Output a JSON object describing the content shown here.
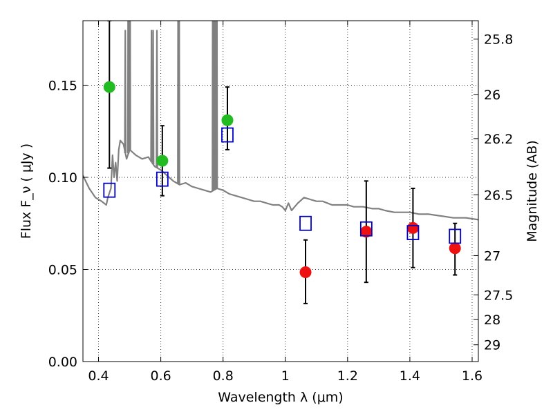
{
  "chart_data": {
    "type": "scatter",
    "xlabel": "Wavelength  λ (μm)",
    "ylabel": "Flux  F_ν  ( μJy )",
    "ylabel_right": "Magnitude (AB)",
    "xlim": [
      0.35,
      1.62
    ],
    "ylim": [
      0.0,
      0.185
    ],
    "grid": true,
    "x_ticks": [
      0.4,
      0.6,
      0.8,
      1.0,
      1.2,
      1.4,
      1.6
    ],
    "x_tick_labels": [
      "0.4",
      "0.6",
      "0.8",
      "1",
      "1.2",
      "1.4",
      "1.6"
    ],
    "y_ticks": [
      0.0,
      0.05,
      0.1,
      0.15
    ],
    "y_tick_labels": [
      "0.00",
      "0.05",
      "0.10",
      "0.15"
    ],
    "right_ticks": [
      {
        "label": "25.8",
        "flux": 0.175
      },
      {
        "label": "26",
        "flux": 0.145
      },
      {
        "label": "26.2",
        "flux": 0.121
      },
      {
        "label": "26.5",
        "flux": 0.0905
      },
      {
        "label": "27",
        "flux": 0.0575
      },
      {
        "label": "27.5",
        "flux": 0.0362
      },
      {
        "label": "28",
        "flux": 0.0228
      },
      {
        "label": "29",
        "flux": 0.0091
      }
    ],
    "colors": {
      "green": "#22bb22",
      "red": "#ee1111",
      "blue_square": "#0000cc",
      "model_line": "#808080",
      "error_bar": "#000000"
    },
    "series": [
      {
        "marker": "circle",
        "color": "green",
        "points": [
          {
            "x": 0.435,
            "y": 0.149,
            "lo": 0.105,
            "hi": 0.185
          },
          {
            "x": 0.605,
            "y": 0.109,
            "lo": 0.09,
            "hi": 0.128
          },
          {
            "x": 0.814,
            "y": 0.131,
            "lo": 0.115,
            "hi": 0.149
          }
        ]
      },
      {
        "marker": "circle",
        "color": "red",
        "points": [
          {
            "x": 1.065,
            "y": 0.0485,
            "lo": 0.0315,
            "hi": 0.066
          },
          {
            "x": 1.26,
            "y": 0.0705,
            "lo": 0.043,
            "hi": 0.098
          },
          {
            "x": 1.41,
            "y": 0.0725,
            "lo": 0.051,
            "hi": 0.094
          },
          {
            "x": 1.545,
            "y": 0.0615,
            "lo": 0.047,
            "hi": 0.075
          }
        ]
      },
      {
        "marker": "square-open",
        "color": "blue_square",
        "points": [
          {
            "x": 0.435,
            "y": 0.093
          },
          {
            "x": 0.605,
            "y": 0.099
          },
          {
            "x": 0.814,
            "y": 0.123
          },
          {
            "x": 1.065,
            "y": 0.075
          },
          {
            "x": 1.26,
            "y": 0.072
          },
          {
            "x": 1.41,
            "y": 0.07
          },
          {
            "x": 1.545,
            "y": 0.068
          }
        ]
      }
    ],
    "model_spectrum": {
      "color": "model_line",
      "points": [
        [
          0.35,
          0.101
        ],
        [
          0.37,
          0.094
        ],
        [
          0.39,
          0.089
        ],
        [
          0.41,
          0.087
        ],
        [
          0.425,
          0.085
        ],
        [
          0.43,
          0.089
        ],
        [
          0.44,
          0.094
        ],
        [
          0.445,
          0.112
        ],
        [
          0.45,
          0.1
        ],
        [
          0.455,
          0.108
        ],
        [
          0.46,
          0.098
        ],
        [
          0.465,
          0.115
        ],
        [
          0.47,
          0.12
        ],
        [
          0.48,
          0.118
        ],
        [
          0.49,
          0.11
        ],
        [
          0.5,
          0.115
        ],
        [
          0.52,
          0.112
        ],
        [
          0.54,
          0.11
        ],
        [
          0.56,
          0.111
        ],
        [
          0.58,
          0.106
        ],
        [
          0.6,
          0.104
        ],
        [
          0.62,
          0.101
        ],
        [
          0.64,
          0.098
        ],
        [
          0.66,
          0.096
        ],
        [
          0.68,
          0.097
        ],
        [
          0.7,
          0.095
        ],
        [
          0.72,
          0.094
        ],
        [
          0.74,
          0.093
        ],
        [
          0.76,
          0.092
        ],
        [
          0.78,
          0.094
        ],
        [
          0.8,
          0.093
        ],
        [
          0.82,
          0.091
        ],
        [
          0.84,
          0.09
        ],
        [
          0.86,
          0.089
        ],
        [
          0.88,
          0.088
        ],
        [
          0.9,
          0.087
        ],
        [
          0.92,
          0.087
        ],
        [
          0.94,
          0.086
        ],
        [
          0.96,
          0.085
        ],
        [
          0.98,
          0.085
        ],
        [
          0.99,
          0.084
        ],
        [
          1.0,
          0.082
        ],
        [
          1.01,
          0.086
        ],
        [
          1.02,
          0.082
        ],
        [
          1.03,
          0.084
        ],
        [
          1.04,
          0.086
        ],
        [
          1.06,
          0.089
        ],
        [
          1.08,
          0.088
        ],
        [
          1.1,
          0.087
        ],
        [
          1.12,
          0.087
        ],
        [
          1.15,
          0.085
        ],
        [
          1.18,
          0.085
        ],
        [
          1.2,
          0.085
        ],
        [
          1.22,
          0.084
        ],
        [
          1.25,
          0.084
        ],
        [
          1.28,
          0.083
        ],
        [
          1.3,
          0.083
        ],
        [
          1.32,
          0.082
        ],
        [
          1.35,
          0.081
        ],
        [
          1.38,
          0.081
        ],
        [
          1.4,
          0.081
        ],
        [
          1.43,
          0.08
        ],
        [
          1.46,
          0.08
        ],
        [
          1.5,
          0.079
        ],
        [
          1.54,
          0.078
        ],
        [
          1.58,
          0.078
        ],
        [
          1.62,
          0.077
        ]
      ],
      "emission_lines": [
        {
          "x": 0.486,
          "peak": 0.18
        },
        {
          "x": 0.5007,
          "peak": 0.3
        },
        {
          "x": 0.4959,
          "peak": 0.3
        },
        {
          "x": 0.5755,
          "peak": 0.18
        },
        {
          "x": 0.5876,
          "peak": 0.18
        },
        {
          "x": 0.5701,
          "peak": 0.18
        },
        {
          "x": 0.6563,
          "peak": 0.3
        },
        {
          "x": 0.6584,
          "peak": 0.3
        },
        {
          "x": 0.7674,
          "peak": 0.3
        },
        {
          "x": 0.7741,
          "peak": 0.3
        },
        {
          "x": 0.7796,
          "peak": 0.3
        }
      ]
    }
  }
}
